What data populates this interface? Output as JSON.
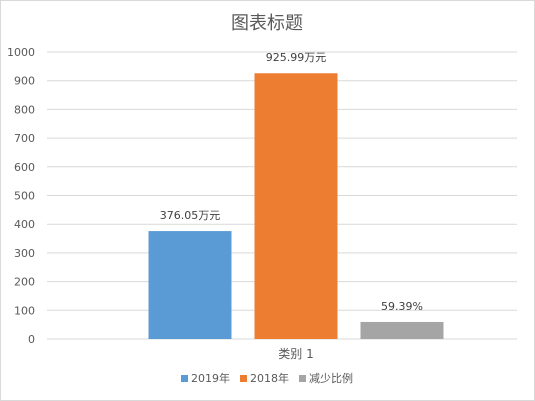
{
  "chart_data": {
    "type": "bar",
    "title": "图表标题",
    "categories": [
      "类别 1"
    ],
    "ylim": [
      0,
      1000
    ],
    "yticks": [
      0,
      100,
      200,
      300,
      400,
      500,
      600,
      700,
      800,
      900,
      1000
    ],
    "grid": true,
    "legend_position": "bottom",
    "series": [
      {
        "name": "2019年",
        "values": [
          376.05
        ],
        "label": "376.05万元",
        "color": "#5b9bd5"
      },
      {
        "name": "2018年",
        "values": [
          925.99
        ],
        "label": "925.99万元",
        "color": "#ed7d31"
      },
      {
        "name": "减少比例",
        "values": [
          59.39
        ],
        "label": "59.39%",
        "color": "#a5a5a5"
      }
    ]
  }
}
